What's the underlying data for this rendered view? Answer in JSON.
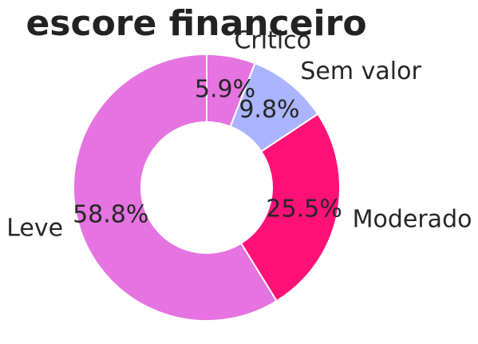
{
  "chart_data": {
    "type": "pie",
    "title": "escore financeiro",
    "categories": [
      "Critico",
      "Sem valor",
      "Moderado",
      "Leve"
    ],
    "values": [
      5.9,
      9.8,
      25.5,
      58.8
    ],
    "value_labels": [
      "5.9%",
      "9.8%",
      "25.5%",
      "58.8%"
    ],
    "colors": [
      "#e573e0",
      "#aab4ff",
      "#ff1177",
      "#e573e0"
    ],
    "donut": true,
    "start_angle": "top, clockwise",
    "legend": "none (labels on slices)"
  }
}
